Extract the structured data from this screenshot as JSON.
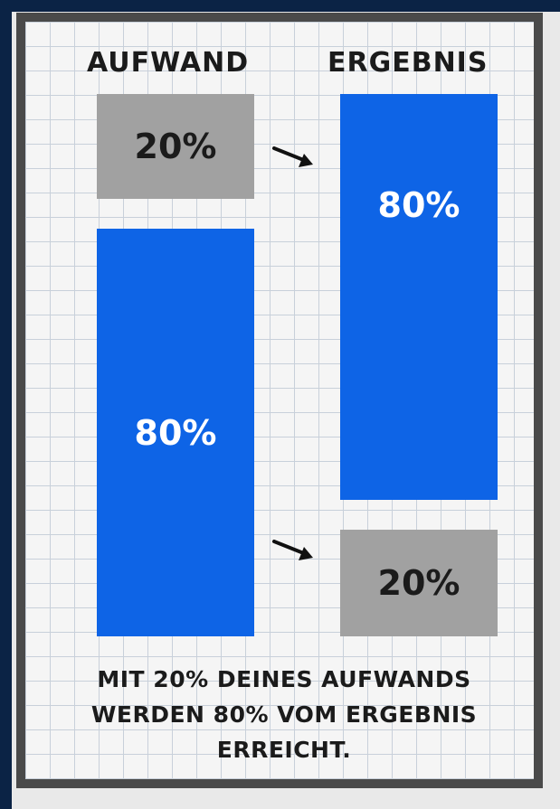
{
  "headers": {
    "left": "AUFWAND",
    "right": "ERGEBNIS"
  },
  "effort": {
    "small_label": "20%",
    "large_label": "80%"
  },
  "result": {
    "large_label": "80%",
    "small_label": "20%"
  },
  "caption": {
    "line1": "MIT 20% DEINES AUFWANDS",
    "line2": "WERDEN 80% VOM ERGEBNIS",
    "line3": "ERREICHT."
  },
  "colors": {
    "background": "#0b2345",
    "frame_border": "#4a4a4a",
    "paper": "#f5f5f5",
    "grid": "#c8d0da",
    "grey_box": "#a1a1a1",
    "blue_box": "#0e64e6",
    "text_dark": "#1b1b1b"
  },
  "icons": [
    "arrow-right-down-icon",
    "arrow-right-down-icon"
  ]
}
